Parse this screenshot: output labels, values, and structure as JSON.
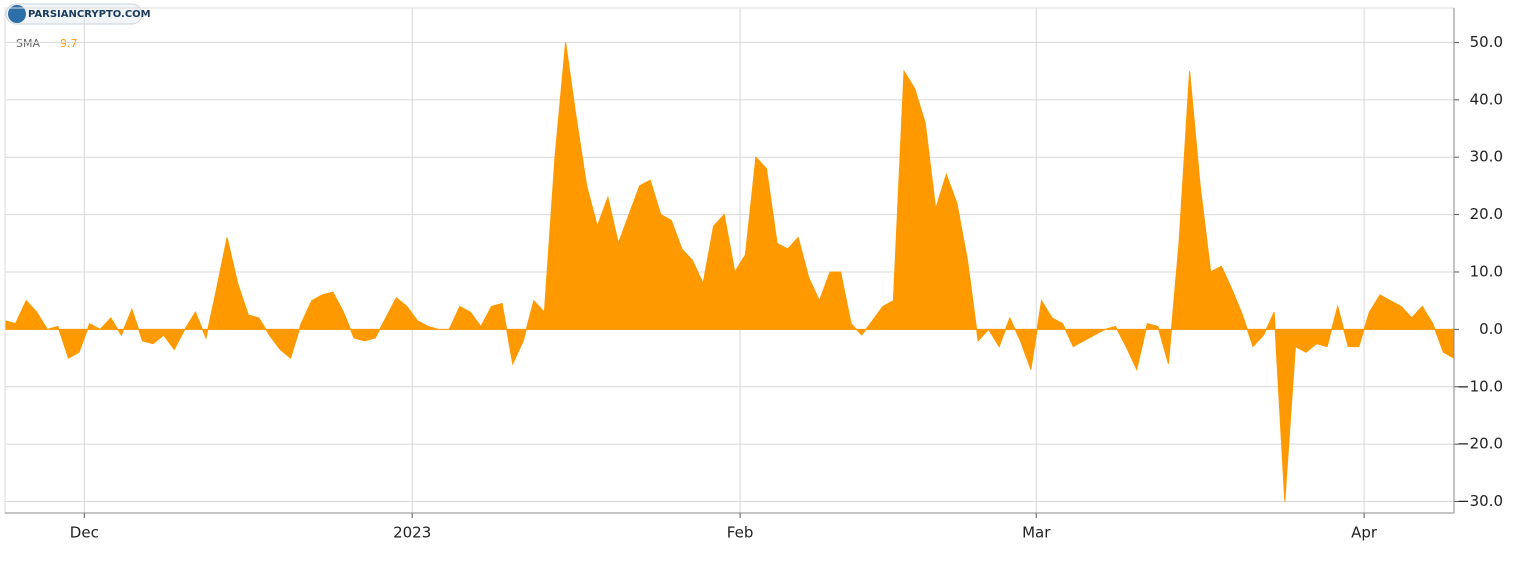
{
  "chart_data": {
    "type": "area",
    "watermark": "PARSIANCRYPTO.COM",
    "legend_value": 9.7,
    "x": [
      0,
      1,
      2,
      3,
      4,
      5,
      6,
      7,
      8,
      9,
      10,
      11,
      12,
      13,
      14,
      15,
      16,
      17,
      18,
      19,
      20,
      21,
      22,
      23,
      24,
      25,
      26,
      27,
      28,
      29,
      30,
      31,
      32,
      33,
      34,
      35,
      36,
      37,
      38,
      39,
      40,
      41,
      42,
      43,
      44,
      45,
      46,
      47,
      48,
      49,
      50,
      51,
      52,
      53,
      54,
      55,
      56,
      57,
      58,
      59,
      60,
      61,
      62,
      63,
      64,
      65,
      66,
      67,
      68,
      69,
      70,
      71,
      72,
      73,
      74,
      75,
      76,
      77,
      78,
      79,
      80,
      81,
      82,
      83,
      84,
      85,
      86,
      87,
      88,
      89,
      90,
      91,
      92,
      93,
      94,
      95,
      96,
      97,
      98,
      99,
      100,
      101,
      102,
      103,
      104,
      105,
      106,
      107,
      108,
      109,
      110,
      111,
      112,
      113,
      114,
      115,
      116,
      117,
      118,
      119,
      120,
      121,
      122,
      123,
      124,
      125,
      126,
      127,
      128,
      129,
      130,
      131,
      132,
      133,
      134,
      135,
      136,
      137
    ],
    "series": [
      {
        "name": "SMA",
        "color": "#ff9900",
        "values": [
          1.5,
          1,
          5,
          3,
          0,
          0.5,
          -5,
          -4,
          1,
          0,
          2,
          -1,
          3.5,
          -2,
          -2.5,
          -1,
          -3.5,
          0,
          3,
          -1.5,
          7,
          16,
          8,
          2.5,
          2,
          -1,
          -3.5,
          -5,
          1,
          5,
          6,
          6.5,
          3,
          -1.5,
          -2,
          -1.5,
          2,
          5.5,
          4,
          1.5,
          0.5,
          0,
          0,
          4,
          3,
          0.5,
          4,
          4.5,
          -6,
          -2,
          5,
          3,
          30,
          50,
          37,
          25,
          18,
          23,
          15,
          20,
          25,
          26,
          20,
          19,
          14,
          12,
          8,
          18,
          20,
          10,
          13,
          30,
          28,
          15,
          14,
          16,
          9,
          5,
          10,
          10,
          1,
          -1,
          1.5,
          4,
          5,
          45,
          42,
          36,
          21,
          27,
          22,
          12,
          -2,
          0,
          -3,
          2,
          -2,
          -7,
          5,
          2,
          1,
          -3,
          -2,
          -1,
          0,
          0.5,
          -3,
          -7,
          1,
          0.5,
          -6,
          15,
          45,
          25,
          10,
          11,
          7,
          2.5,
          -3,
          -1,
          3,
          -30,
          -3,
          -4,
          -2.5,
          -3,
          4,
          -3,
          -3,
          3,
          6,
          5,
          4,
          2,
          4,
          1,
          -4,
          -5
        ]
      }
    ],
    "xlim": [
      0,
      137
    ],
    "xticks": [
      {
        "value": 7.5,
        "label": "Dec"
      },
      {
        "value": 38.5,
        "label": "2023"
      },
      {
        "value": 69.5,
        "label": "Feb"
      },
      {
        "value": 97.5,
        "label": "Mar"
      },
      {
        "value": 128.5,
        "label": "Apr"
      }
    ],
    "ylim": [
      -32,
      56
    ],
    "yticks": [
      {
        "value": 50,
        "label": "50.0"
      },
      {
        "value": 40,
        "label": "40.0"
      },
      {
        "value": 30,
        "label": "30.0"
      },
      {
        "value": 20,
        "label": "20.0"
      },
      {
        "value": 10,
        "label": "10.0"
      },
      {
        "value": 0,
        "label": "0.0"
      },
      {
        "value": -10,
        "label": "−10.0"
      },
      {
        "value": -20,
        "label": "−20.0"
      },
      {
        "value": -30,
        "label": "−30.0"
      }
    ],
    "grid": true
  }
}
